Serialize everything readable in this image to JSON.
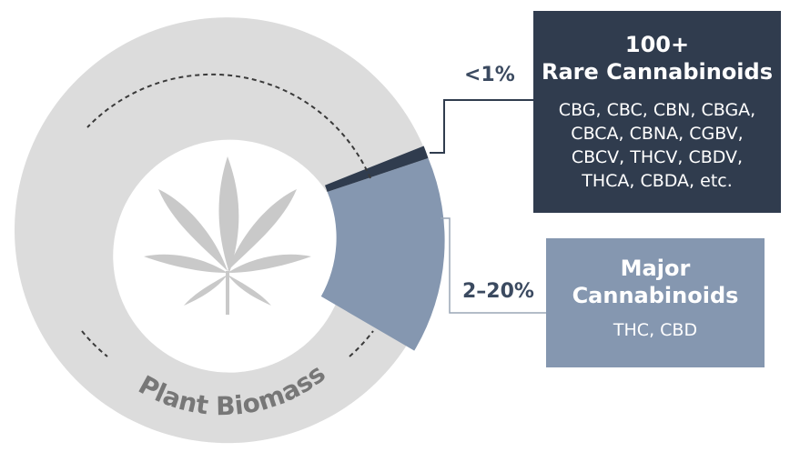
{
  "donut": {
    "label": "Plant Biomass",
    "center_icon": "cannabis-leaf-icon",
    "segments": [
      {
        "key": "rare",
        "percent_label": "<1%",
        "color": "#303c4e"
      },
      {
        "key": "major",
        "percent_label": "2–20%",
        "color": "#8597b0"
      },
      {
        "key": "biomass",
        "color": "#dcdcdc"
      }
    ]
  },
  "rare_box": {
    "title_line1": "100+",
    "title_line2": "Rare Cannabinoids",
    "lines": [
      "CBG, CBC, CBN, CBGA,",
      "CBCA, CBNA, CGBV,",
      "CBCV, THCV, CBDV,",
      "THCA, CBDA, etc."
    ],
    "color": "#303c4e"
  },
  "major_box": {
    "title_line1": "Major",
    "title_line2": "Cannabinoids",
    "lines": [
      "THC, CBD"
    ],
    "color": "#8597b0"
  }
}
